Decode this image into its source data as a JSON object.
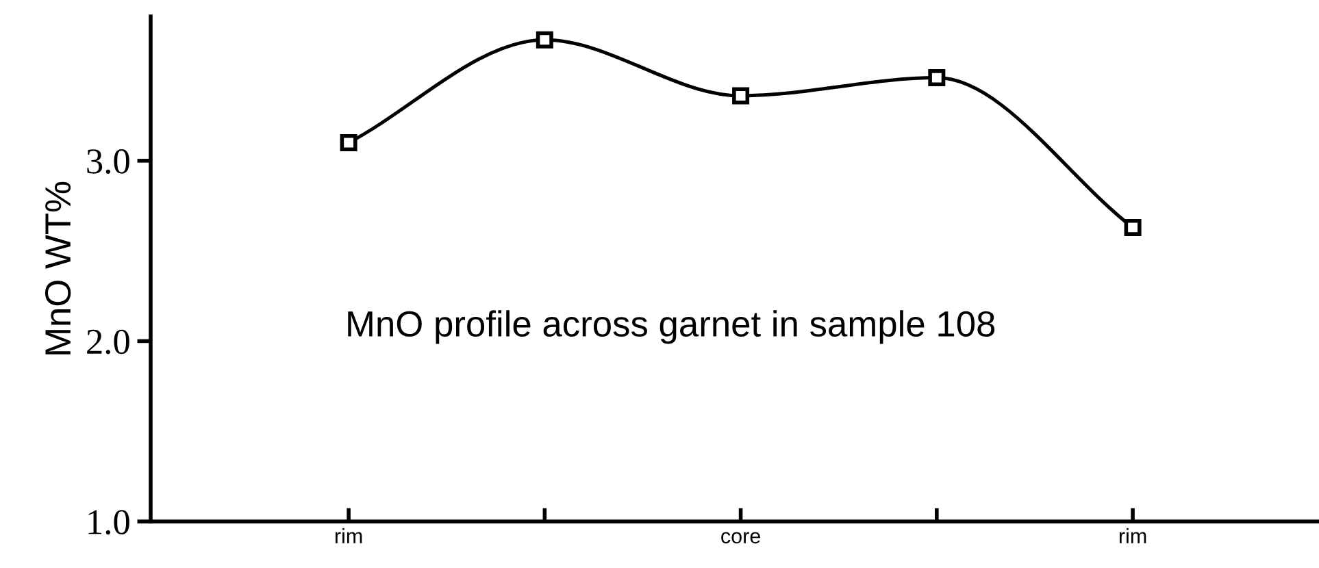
{
  "chart_data": {
    "type": "line",
    "ylabel": "MnO WT%",
    "categories": [
      "rim",
      null,
      "core",
      null,
      "rim"
    ],
    "series": [
      {
        "color": "#000000",
        "values": [
          3.1,
          3.67,
          3.36,
          3.46,
          2.63
        ]
      }
    ],
    "ylim": [
      1.0,
      3.8
    ],
    "yticks": [
      {
        "value": 1.0,
        "label": "1.0"
      },
      {
        "value": 2.0,
        "label": "2.0"
      },
      {
        "value": 3.0,
        "label": "3.0"
      }
    ],
    "annotations": [
      {
        "text": "MnO profile across garnet in sample 108"
      }
    ],
    "marker": "square",
    "line_style": "solid",
    "grid": false
  }
}
